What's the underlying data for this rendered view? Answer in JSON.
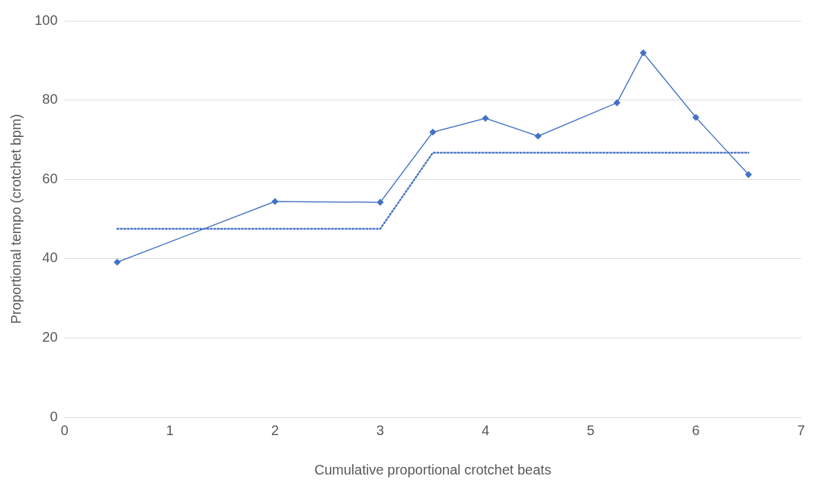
{
  "chart_data": {
    "type": "line",
    "xlabel": "Cumulative proportional crotchet beats",
    "ylabel": "Proportional tempo (crotchet bpm)",
    "series": [
      {
        "color": "#4472c4",
        "x": [
          0.5,
          2,
          3,
          3.5,
          4,
          4.5,
          5.25,
          5.5,
          6,
          6.5
        ],
        "values": [
          39.1,
          54.4,
          54.2,
          71.9,
          75.4,
          70.9,
          79.3,
          91.9,
          75.6,
          61.2
        ],
        "marker": "diamond",
        "line_style": "solid"
      },
      {
        "color": "#4472c4",
        "x": [
          0.5,
          3,
          3.5,
          6.5
        ],
        "values": [
          47.5,
          47.5,
          66.7,
          66.7
        ],
        "marker": "none",
        "line_style": "dotted"
      }
    ],
    "xlim": [
      0,
      7
    ],
    "xticks": [
      0,
      1,
      2,
      3,
      4,
      5,
      6,
      7
    ],
    "ylim": [
      0,
      100
    ],
    "yticks": [
      0,
      20,
      40,
      60,
      80,
      100
    ],
    "grid": "y",
    "legend": false
  }
}
